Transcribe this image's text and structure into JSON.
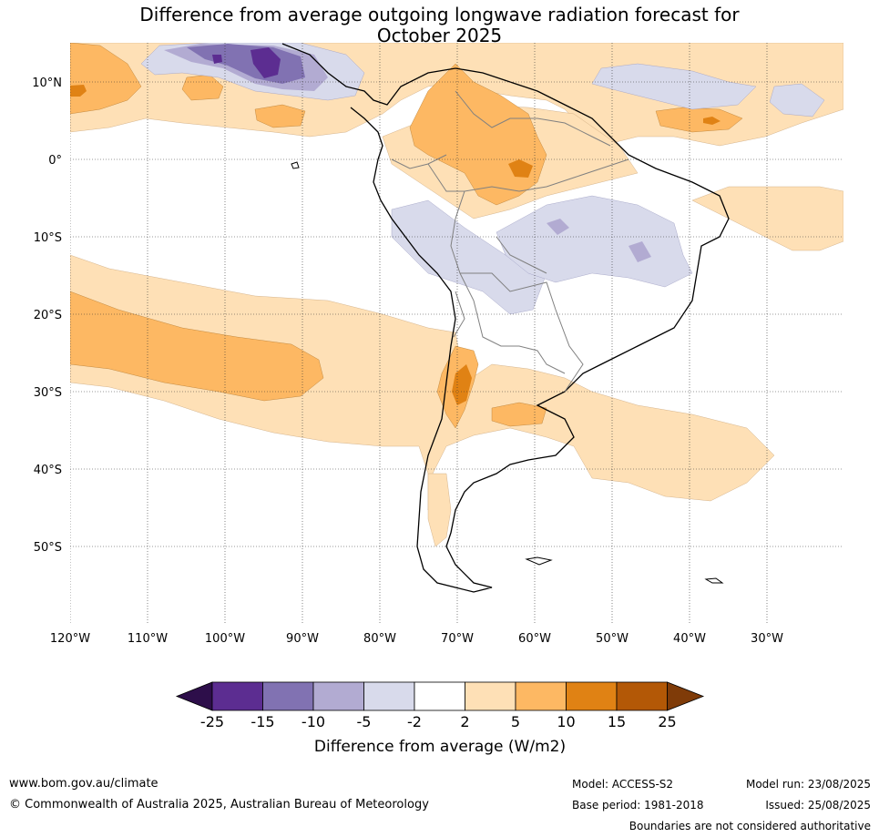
{
  "title": {
    "line1": "Difference from average outgoing longwave radiation forecast for",
    "line2": "October 2025"
  },
  "map": {
    "lon_labels": [
      "120°W",
      "110°W",
      "100°W",
      "90°W",
      "80°W",
      "70°W",
      "60°W",
      "50°W",
      "40°W",
      "30°W"
    ],
    "lat_labels": [
      "10°N",
      "0°",
      "10°S",
      "20°S",
      "30°S",
      "40°S",
      "50°S"
    ]
  },
  "colorbar": {
    "ticks": [
      "-25",
      "-15",
      "-10",
      "-5",
      "-2",
      "2",
      "5",
      "10",
      "15",
      "25"
    ],
    "label": "Difference from average (W/m2)",
    "colors": [
      "#2d0e4a",
      "#5c2d91",
      "#8172b2",
      "#b2abd2",
      "#d8daeb",
      "#ffffff",
      "#fee0b6",
      "#fdb863",
      "#e08214",
      "#b35806",
      "#7f3b08"
    ]
  },
  "footer": {
    "website": "www.bom.gov.au/climate",
    "copyright": "© Commonwealth of Australia 2025, Australian Bureau of Meteorology",
    "model": "Model: ACCESS-S2",
    "base_period": "Base period: 1981-2018",
    "model_run": "Model run: 23/08/2025",
    "issued": "Issued: 25/08/2025",
    "disclaimer": "Boundaries are not considered authoritative"
  }
}
